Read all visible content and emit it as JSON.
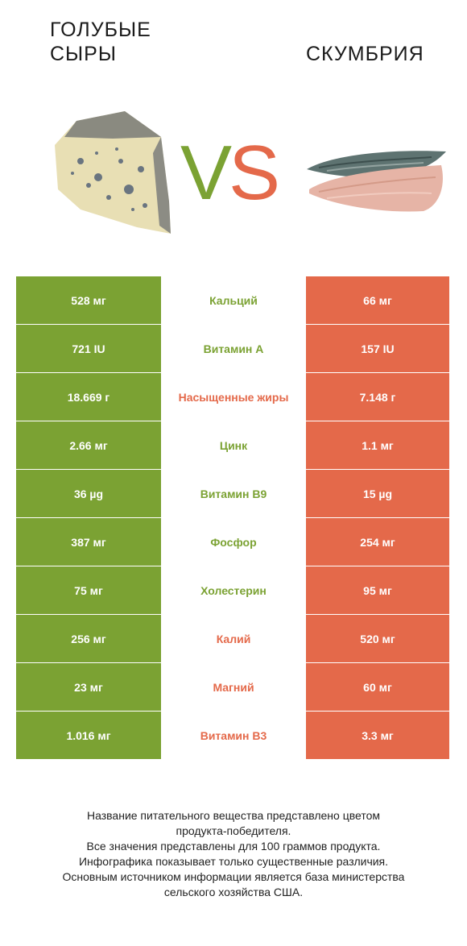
{
  "header": {
    "left_title_line1": "ГОЛУБЫЕ",
    "left_title_line2": "СЫРЫ",
    "right_title": "СКУМБРИЯ",
    "vs_v": "V",
    "vs_s": "S"
  },
  "colors": {
    "left_product": "#7ba233",
    "right_product": "#e4694a"
  },
  "rows": [
    {
      "left": "528 мг",
      "nutrient": "Кальций",
      "right": "66 мг",
      "winner": "left"
    },
    {
      "left": "721 IU",
      "nutrient": "Витамин A",
      "right": "157 IU",
      "winner": "left"
    },
    {
      "left": "18.669 г",
      "nutrient": "Насыщенные жиры",
      "right": "7.148 г",
      "winner": "right"
    },
    {
      "left": "2.66 мг",
      "nutrient": "Цинк",
      "right": "1.1 мг",
      "winner": "left"
    },
    {
      "left": "36 µg",
      "nutrient": "Витамин B9",
      "right": "15 µg",
      "winner": "left"
    },
    {
      "left": "387 мг",
      "nutrient": "Фосфор",
      "right": "254 мг",
      "winner": "left"
    },
    {
      "left": "75 мг",
      "nutrient": "Холестерин",
      "right": "95 мг",
      "winner": "left"
    },
    {
      "left": "256 мг",
      "nutrient": "Калий",
      "right": "520 мг",
      "winner": "right"
    },
    {
      "left": "23 мг",
      "nutrient": "Магний",
      "right": "60 мг",
      "winner": "right"
    },
    {
      "left": "1.016 мг",
      "nutrient": "Витамин B3",
      "right": "3.3 мг",
      "winner": "right"
    }
  ],
  "footer": {
    "line1": "Название питательного вещества представлено цветом",
    "line2": "продукта-победителя.",
    "line3": "Все значения представлены для 100 граммов продукта.",
    "line4": "Инфографика показывает только существенные различия.",
    "line5": "Основным источником информации является база министерства",
    "line6": "сельского хозяйства США."
  }
}
